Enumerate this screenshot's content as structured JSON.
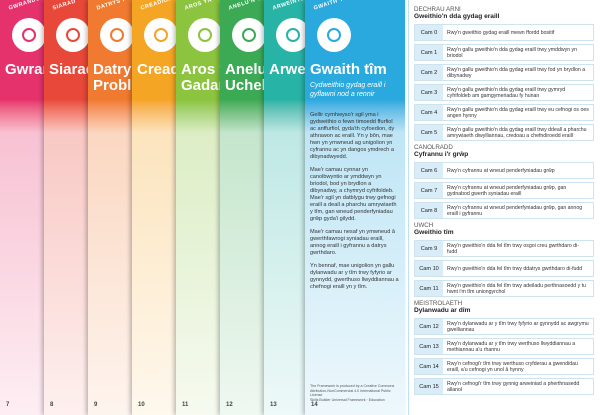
{
  "cards": [
    {
      "label": "GWRANDO",
      "title": "Gwrando",
      "number": "7",
      "color": "#e5326c"
    },
    {
      "label": "SIARAD",
      "title": "Siarad",
      "number": "8",
      "color": "#e8483a"
    },
    {
      "label": "DATRYS PROBLEMAU",
      "title": "Datrys Problemau",
      "number": "9",
      "color": "#f07a30"
    },
    {
      "label": "CREADIGRWYDD",
      "title": "Creadigrwydd",
      "number": "10",
      "color": "#f5a524"
    },
    {
      "label": "AROS YN GADARNHAOL",
      "title": "Aros yn Gadarnhaol",
      "number": "11",
      "color": "#8cc43f"
    },
    {
      "label": "ANELU'N UCHEL",
      "title": "Anelu'n Uchel",
      "number": "12",
      "color": "#3caa55"
    },
    {
      "label": "ARWEINYDDIAETH",
      "title": "Arweinyddiaeth",
      "number": "13",
      "color": "#27b3a6"
    },
    {
      "label": "GWAITH TÎM",
      "title": "Gwaith tîm",
      "number": "14",
      "color": "#2aa9df",
      "subtitle": "Cydweithio gydag eraill i gyflawni nod a rennir",
      "paragraphs": [
        "Gellir cymhwyso'r sgil yma i gydweithio o fewn timoedd ffurfiol ac anffurfiol, gyda'th cyfoedion, dy athrawon ac eraill. Yn y bôn, mae hwn yn ymwneud ag unigolion yn cyfrannu ac yn dangos ymdrech a dibynadwyedd.",
        "Mae'r camau cynnar yn canolbwyntio ar ymddwyn yn briodol, bod yn brydlon a dibynadwy, a chymryd cyfrifoldeb. Mae'r sgil yn datblygu trwy gefnogi eraill a deall a pharchu amrywiaeth y tîm, gan wneud penderfyniadau grŵp gyda'i gilydd.",
        "Mae'r camau nesaf yn ymwneud â gwerthfawrogi syniadau eraill, annog eraill i gyfrannu a datrys gwrthdaro.",
        "Yn bennaf, mae unigolion yn gallu dylanwadu ar y tîm trwy fyfyrio ar gynnydd, gwerthuso llwyddiannau a chefnogi eraill yn y tîm."
      ],
      "footer": "The Framework is produced by a Creative Commons Attribution-NonCommercial 4.0 International Public License",
      "brand": "Skills Builder Universal Framework · Education"
    }
  ],
  "panel": {
    "sections": [
      {
        "level": "DECHRAU ARNI",
        "heading": "Gweithio'n dda gydag eraill",
        "steps": [
          {
            "cam": "Cam 0",
            "text": "Rwy'n gweithio gydag eraill mewn ffordd bositif"
          },
          {
            "cam": "Cam 1",
            "text": "Rwy'n gallu gweithio'n dda gydag eraill trwy ymddwyn yn briodol"
          },
          {
            "cam": "Cam 2",
            "text": "Rwy'n gallu gweithio'n dda gydag eraill trwy fod yn brydlon a dibynadwy"
          },
          {
            "cam": "Cam 3",
            "text": "Rwy'n gallu gweithio'n dda gydag eraill trwy gymryd cyfrifoldeb am gamgymeriadau fy hunan"
          },
          {
            "cam": "Cam 4",
            "text": "Rwy'n gallu gweithio'n dda gydag eraill trwy eu cefnogi os oes angen hynny"
          },
          {
            "cam": "Cam 5",
            "text": "Rwy'n gallu gweithio'n dda gydag eraill trwy ddeall a pharchu amrywiaeth diwylliannau, credoau a chefndiroedd eraill"
          }
        ]
      },
      {
        "level": "CANOLRADD",
        "heading": "Cyfrannu i'r grŵp",
        "steps": [
          {
            "cam": "Cam 6",
            "text": "Rwy'n cyfrannu at wneud penderfyniadau grŵp"
          },
          {
            "cam": "Cam 7",
            "text": "Rwy'n cyfrannu at wneud penderfyniadau grŵp, gan gydnabod gwerth syniadau eraill"
          },
          {
            "cam": "Cam 8",
            "text": "Rwy'n cyfrannu at wneud penderfyniadau grŵp, gan annog eraill i gyfrannu"
          }
        ]
      },
      {
        "level": "UWCH",
        "heading": "Gweithio tîm",
        "steps": [
          {
            "cam": "Cam 9",
            "text": "Rwy'n gweithio'n dda fel tîm trwy osgoi creu gwrthdaro di-fudd"
          },
          {
            "cam": "Cam 10",
            "text": "Rwy'n gweithio'n dda fel tîm trwy ddatrys gwrthdaro di-fudd"
          },
          {
            "cam": "Cam 11",
            "text": "Rwy'n gweithio'n dda fel tîm trwy adeiladu perthnasoedd y tu hwnt i'm tîm uniongyrchol"
          }
        ]
      },
      {
        "level": "MEISTROLAETH",
        "heading": "Dylanwadu ar dîm",
        "steps": [
          {
            "cam": "Cam 12",
            "text": "Rwy'n dylanwadu ar y tîm trwy fyfyrio ar gynnydd ac awgrymu gwelliannau"
          },
          {
            "cam": "Cam 13",
            "text": "Rwy'n dylanwadu ar y tîm trwy werthuso llwyddiannau a methiannau a'u rhannu"
          },
          {
            "cam": "Cam 14",
            "text": "Rwy'n cefnogi'r tîm trwy werthuso cryfderau a gwendidau eraill, a'u cefnogi yn unol â hynny"
          },
          {
            "cam": "Cam 15",
            "text": "Rwy'n cefnogi'r tîm trwy gynnig arweiniad a pherthnasedd allanol"
          }
        ]
      }
    ]
  }
}
